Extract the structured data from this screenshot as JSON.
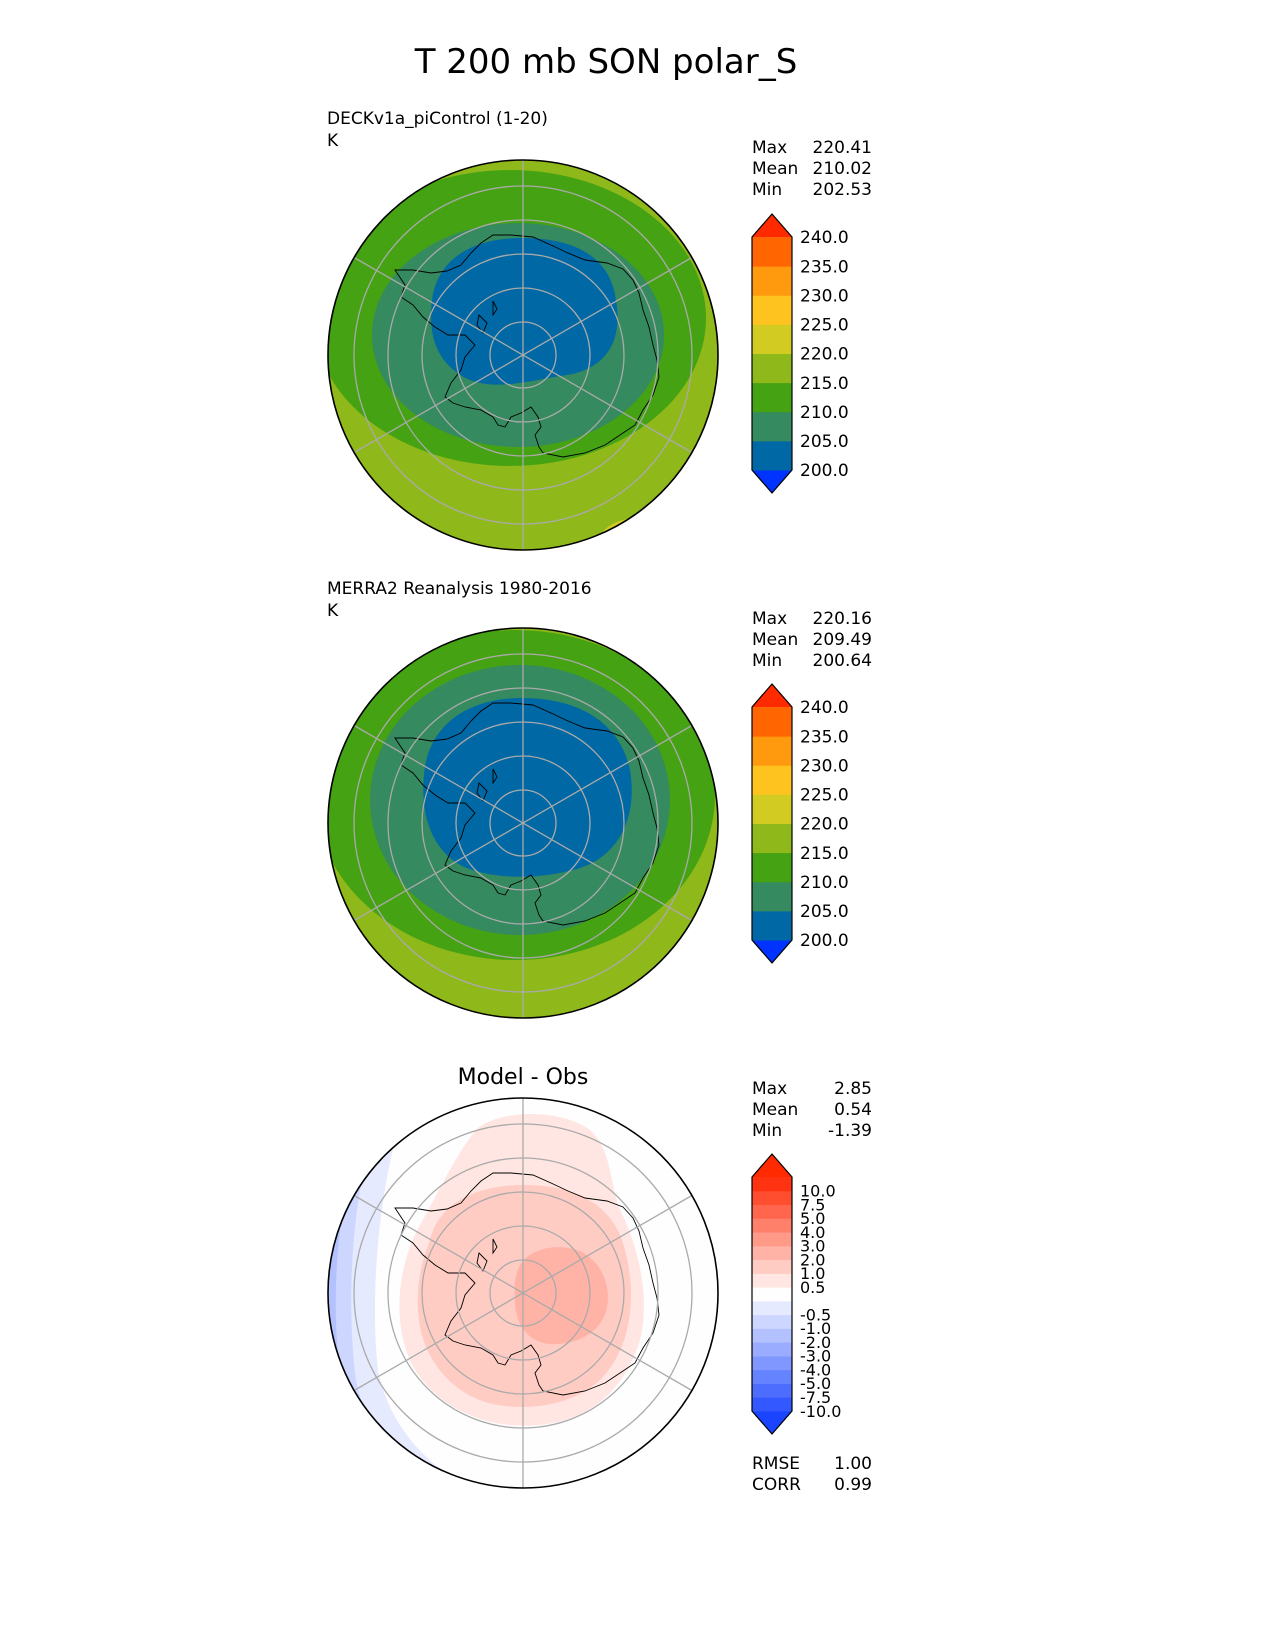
{
  "page_title": "T 200 mb SON polar_S",
  "colors": {
    "abs_levels": [
      "#0033ff",
      "#0068a4",
      "#358a5f",
      "#45a213",
      "#8fb81a",
      "#d2cc22",
      "#ffc31f",
      "#ff9a0f",
      "#ff6500",
      "#ff2a00"
    ],
    "diff_levels": [
      "#1a44ff",
      "#3358ff",
      "#4d6dff",
      "#6683ff",
      "#8097ff",
      "#99acff",
      "#b3c1ff",
      "#ccd6ff",
      "#e6eaff",
      "#fefefe",
      "#ffe6e2",
      "#ffccc4",
      "#ffb3a6",
      "#ff9988",
      "#ff806a",
      "#ff664d",
      "#ff4d2f",
      "#ff3312",
      "#ff2a00"
    ],
    "grid": "#aaaaaa",
    "coastline": "#000000"
  },
  "chart_data": [
    {
      "type": "heatmap",
      "projection": "south polar stereographic",
      "title_left": "DECKv1a_piControl (1-20)",
      "units": "K",
      "stats": [
        {
          "label": "Max",
          "value": "220.41"
        },
        {
          "label": "Mean",
          "value": "210.02"
        },
        {
          "label": "Min",
          "value": "202.53"
        }
      ],
      "colorbar": {
        "extend": "both",
        "tick_labels": [
          "200.0",
          "205.0",
          "210.0",
          "215.0",
          "220.0",
          "225.0",
          "230.0",
          "235.0",
          "240.0"
        ],
        "level_edges": [
          195,
          200,
          205,
          210,
          215,
          220,
          225,
          230,
          235,
          240
        ]
      }
    },
    {
      "type": "heatmap",
      "projection": "south polar stereographic",
      "title_left": "MERRA2 Reanalysis 1980-2016",
      "units": "K",
      "stats": [
        {
          "label": "Max",
          "value": "220.16"
        },
        {
          "label": "Mean",
          "value": "209.49"
        },
        {
          "label": "Min",
          "value": "200.64"
        }
      ],
      "colorbar": {
        "extend": "both",
        "tick_labels": [
          "200.0",
          "205.0",
          "210.0",
          "215.0",
          "220.0",
          "225.0",
          "230.0",
          "235.0",
          "240.0"
        ],
        "level_edges": [
          195,
          200,
          205,
          210,
          215,
          220,
          225,
          230,
          235,
          240
        ]
      }
    },
    {
      "type": "heatmap",
      "projection": "south polar stereographic",
      "title": "Model - Obs",
      "stats": [
        {
          "label": "Max",
          "value": "2.85"
        },
        {
          "label": "Mean",
          "value": "0.54"
        },
        {
          "label": "Min",
          "value": "-1.39"
        }
      ],
      "colorbar": {
        "extend": "both",
        "tick_labels": [
          "-10.0",
          "-7.5",
          "-5.0",
          "-4.0",
          "-3.0",
          "-2.0",
          "-1.0",
          "-0.5",
          "0.5",
          "1.0",
          "2.0",
          "3.0",
          "4.0",
          "5.0",
          "7.5",
          "10.0"
        ]
      },
      "metrics": [
        {
          "label": "RMSE",
          "value": "1.00"
        },
        {
          "label": "CORR",
          "value": "0.99"
        }
      ]
    }
  ]
}
